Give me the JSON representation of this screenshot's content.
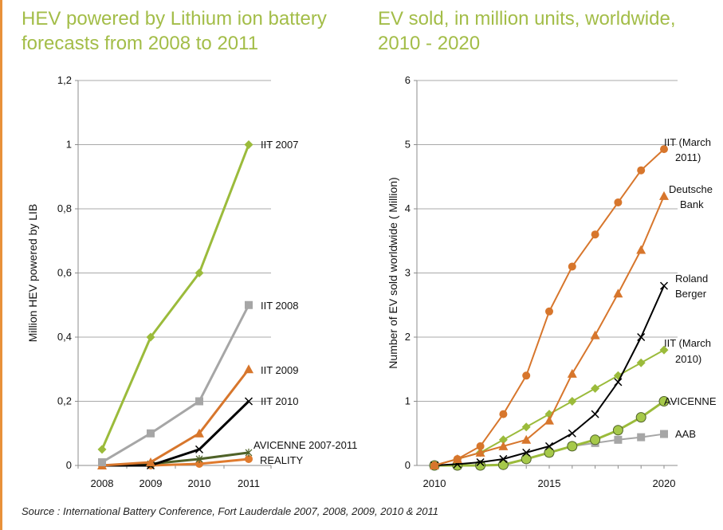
{
  "charts_meta": {
    "source": "Source : International Battery Conference, Fort Lauderdale 2007, 2008, 2009, 2010 & 2011"
  },
  "chart_data": [
    {
      "type": "line",
      "title": "HEV powered by Lithium ion battery forecasts from 2008 to 2011",
      "xlabel": "",
      "ylabel": "Million HEV powered by LIB",
      "categories": [
        "2008",
        "2009",
        "2010",
        "2011"
      ],
      "ylim": [
        0,
        1.2
      ],
      "yticks": [
        "0",
        "0,2",
        "0,4",
        "0,6",
        "0,8",
        "1",
        "1,2"
      ],
      "grid": "horizontal",
      "series": [
        {
          "name": "IIT 2007",
          "values": [
            0.05,
            0.4,
            0.6,
            1.0
          ],
          "color": "#9bbb3b",
          "marker": "diamond"
        },
        {
          "name": "IIT 2008",
          "values": [
            0.01,
            0.1,
            0.2,
            0.5
          ],
          "color": "#a6a6a6",
          "marker": "square"
        },
        {
          "name": "IIT 2009",
          "values": [
            0.0,
            0.01,
            0.1,
            0.3
          ],
          "color": "#d7762c",
          "marker": "triangle"
        },
        {
          "name": "IIT 2010",
          "values": [
            0.0,
            0.0,
            0.05,
            0.2
          ],
          "color": "#000000",
          "marker": "x"
        },
        {
          "name": "AVICENNE 2007-2011",
          "values": [
            0.0,
            0.005,
            0.02,
            0.04
          ],
          "color": "#4f6228",
          "marker": "star"
        },
        {
          "name": "REALITY",
          "values": [
            0.0,
            0.0,
            0.005,
            0.02
          ],
          "color": "#e07b2e",
          "marker": "circle"
        }
      ]
    },
    {
      "type": "line",
      "title": "EV sold, in million units, worldwide, 2010 - 2020",
      "xlabel": "",
      "ylabel": "Number of EV sold worldwide ( Million)",
      "x": [
        2010,
        2011,
        2012,
        2013,
        2014,
        2015,
        2016,
        2017,
        2018,
        2019,
        2020
      ],
      "xticks": [
        "2010",
        "2015",
        "2020"
      ],
      "ylim": [
        0,
        6
      ],
      "yticks": [
        "0",
        "1",
        "2",
        "3",
        "4",
        "5",
        "6"
      ],
      "grid": "horizontal",
      "series": [
        {
          "name": "IIT (March 2011)",
          "values": [
            0,
            0.1,
            0.3,
            0.8,
            1.4,
            2.4,
            3.1,
            3.6,
            4.1,
            4.6,
            4.93
          ],
          "color": "#d7762c",
          "marker": "circle"
        },
        {
          "name": "Deutsche Bank",
          "values": [
            0,
            0.1,
            0.2,
            0.3,
            0.4,
            0.7,
            1.43,
            2.03,
            2.68,
            3.36,
            4.2
          ],
          "color": "#d7762c",
          "marker": "triangle"
        },
        {
          "name": "Roland Berger",
          "values": [
            0,
            0.02,
            0.05,
            0.1,
            0.2,
            0.3,
            0.5,
            0.8,
            1.3,
            2.0,
            2.8
          ],
          "color": "#000000",
          "marker": "x"
        },
        {
          "name": "IIT (March 2010)",
          "values": [
            0,
            0.1,
            0.2,
            0.4,
            0.6,
            0.8,
            1.0,
            1.2,
            1.4,
            1.6,
            1.8
          ],
          "color": "#9bbb3b",
          "marker": "diamond"
        },
        {
          "name": "AVICENNE",
          "values": [
            0,
            0,
            0,
            0.01,
            0.1,
            0.2,
            0.3,
            0.4,
            0.55,
            0.75,
            1.0
          ],
          "color": "#9bbb3b",
          "marker": "bigcircle"
        },
        {
          "name": "AAB",
          "values": [
            0,
            0,
            0,
            0.02,
            0.1,
            0.2,
            0.3,
            0.35,
            0.4,
            0.44,
            0.49
          ],
          "color": "#a6a6a6",
          "marker": "square"
        }
      ]
    }
  ]
}
